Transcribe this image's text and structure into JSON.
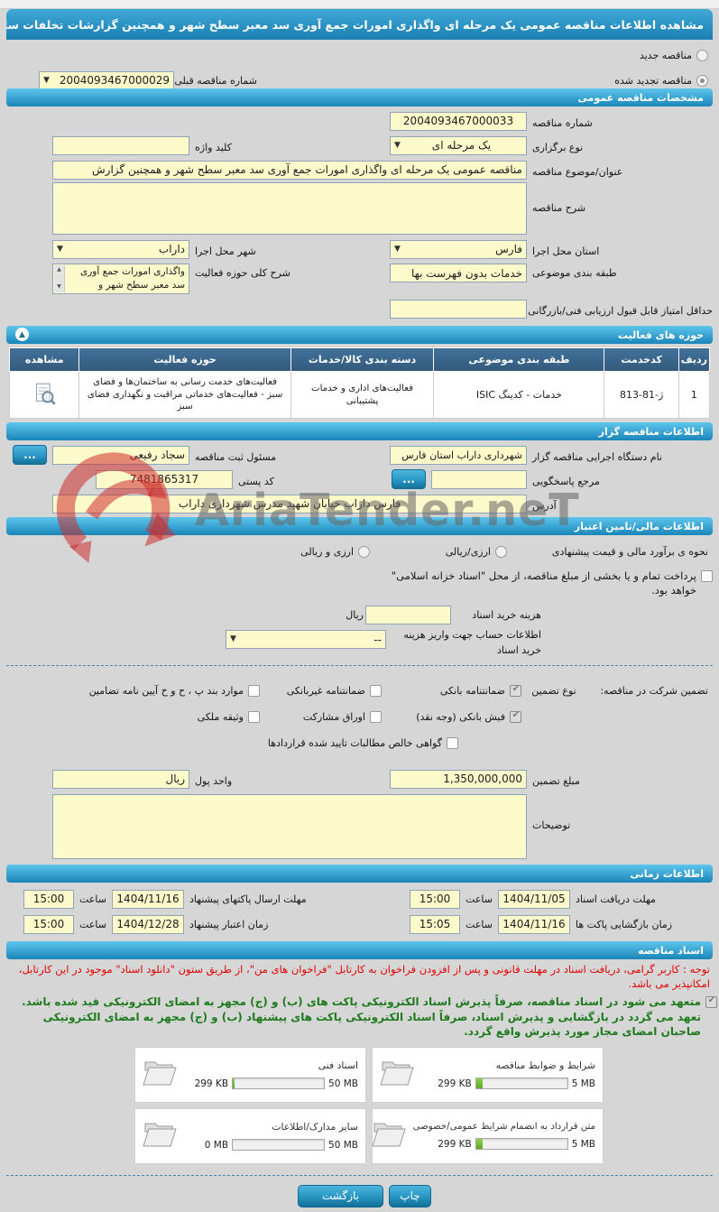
{
  "header": {
    "title": "مشاهده اطلاعات مناقصه عمومی یک مرحله ای واگذاری امورات جمع آوری سد معبر سطح شهر و همچنین گزارشات تخلفات ساختمانی",
    "new_radio": "مناقصه جدید",
    "renewed_radio": "مناقصه تجدید شده",
    "renewed_selected": true,
    "prev_no_label": "شماره مناقصه قبلی",
    "prev_no": "2004093467000029"
  },
  "specs": {
    "bar": "مشخصات مناقصه عمومی",
    "no_label": "شماره مناقصه",
    "no": "2004093467000033",
    "type_label": "نوع برگزاری",
    "type": "یک مرحله ای",
    "keyword_label": "کلید واژه",
    "keyword": "",
    "subject_label": "عنوان/موضوع مناقصه",
    "subject": "مناقصه عمومی یک مرحله ای واگذاری امورات جمع آوری سد معبر سطح شهر و همچنین گزارش",
    "desc_label": "شرح مناقصه",
    "desc": "",
    "province_label": "استان محل اجرا",
    "province": "فارس",
    "city_label": "شهر محل اجرا",
    "city": "داراب",
    "class_label": "طبقه بندی موضوعی",
    "class": "خدمات بدون فهرست بها",
    "scope_label": "شرح کلی حوزه فعالیت",
    "scope": "واگذاری امورات جمع آوری سد معبر سطح شهر و",
    "minscore_label": "حداقل امتیاز قابل قبول ارزیابی فنی/بازرگانی",
    "minscore": ""
  },
  "activity_table": {
    "bar": "حوزه های فعالیت",
    "headers": [
      "ردیف",
      "کدخدمت",
      "طبقه بندی موضوعی",
      "دسته بندی کالا/خدمات",
      "حوزه فعالیت",
      "مشاهده"
    ],
    "rows": [
      {
        "index": "1",
        "code": "ژ-81-813",
        "class": "خدمات - کدینگ ISIC",
        "category": "فعالیت‌های اداری و خدمات پشتیبانی",
        "field": "فعالیت‌های خدمت رسانی به ساختمان‌ها و فضای سبز - فعالیت‌های خدماتی مراقبت و نگهداری فضای سبز"
      }
    ]
  },
  "agency": {
    "bar": "اطلاعات مناقصه گزار",
    "name_label": "نام دستگاه اجرایی مناقصه گزار",
    "name": "شهرداری داراب استان فارس",
    "registrar_label": "مسئول ثبت مناقصه",
    "registrar": "سجاد رفیعی",
    "more_label": "...",
    "ref_label": "مرجع پاسخگویی",
    "ref": "",
    "postal_label": "کد پستی",
    "postal": "7481865317",
    "address_label": "آدرس",
    "address": "فارس داراب خیابان شهید مدرس شهرداری داراب"
  },
  "financial": {
    "bar": "اطلاعات مالی/تامین اعتبار",
    "estimate_label": "نحوه ی برآورد مالی و قیمت پیشنهادی",
    "opt1": "ارزی/ریالی",
    "opt2": "ارزی و ریالی",
    "treasury_note": "پرداخت تمام و یا بخشی از مبلغ مناقصه، از محل \"اسناد خزانه اسلامی\" خواهد بود.",
    "docfee_label": "هزینه خرید اسناد",
    "rial": "ریال",
    "account_label_1": "اطلاعات حساب جهت واریز هزینه",
    "account_label_2": "خرید اسناد",
    "account_value": "--",
    "guarantee_label": "تضمین شرکت در مناقصه:",
    "type_label": "نوع تضمین",
    "guarantees": [
      {
        "label": "ضمانتنامه بانکی",
        "checked": true
      },
      {
        "label": "ضمانتنامه غیربانکی",
        "checked": false
      },
      {
        "label": "موارد بند پ ، ح و خ آیین نامه تضامین",
        "checked": false
      },
      {
        "label": "فیش بانکی (وجه نقد)",
        "checked": true
      },
      {
        "label": "اوراق مشارکت",
        "checked": false
      },
      {
        "label": "وثیقه ملکی",
        "checked": false
      },
      {
        "label": "گواهی خالص مطالبات تایید شده قراردادها",
        "checked": false
      }
    ],
    "treasury_checked": false,
    "amount_label": "مبلغ تضمین",
    "amount": "1,350,000,000",
    "currency_label": "واحد پول",
    "currency": "ریال",
    "notes_label": "توضیحات",
    "notes": ""
  },
  "schedule": {
    "bar": "اطلاعات زمانی",
    "hour": "ساعت",
    "r1a_label": "مهلت دریافت اسناد",
    "r1a_date": "1404/11/05",
    "r1a_time": "15:00",
    "r1b_label": "مهلت ارسال پاکتهای پیشنهاد",
    "r1b_date": "1404/11/16",
    "r1b_time": "15:00",
    "r2a_label": "زمان بازگشایی پاکت ها",
    "r2a_date": "1404/11/16",
    "r2a_time": "15:05",
    "r2b_label": "زمان اعتبار پیشنهاد",
    "r2b_date": "1404/12/28",
    "r2b_time": "15:00"
  },
  "documents": {
    "bar": "اسناد مناقصه",
    "note_red": "توجه : کاربر گرامی، دریافت اسناد در مهلت قانونی و پس از افزودن فراخوان به کارتابل \"فراخوان های من\"، از طریق ستون \"دانلود اسناد\" موجود در این کارتابل، امکانپذیر می باشد.",
    "commitment_checked": true,
    "note_green": "متعهد می شود در اسناد مناقصه، صرفاً پذیرش اسناد الکترونیکی پاکت های (ب) و (ج) مجهز به امضای الکترونیکی قید شده باشد. تعهد می گردد در بازگشایی و پذیرش اسناد، صرفاً اسناد الکترونیکی پاکت های پیشنهاد (ب) و (ج) مجهز به امضای الکترونیکی صاحبان امضای مجاز مورد پذیرش واقع گردد.",
    "files": [
      {
        "title": "شرایط و ضوابط مناقصه",
        "size": "299 KB",
        "max": "5 MB",
        "pct": 7
      },
      {
        "title": "اسناد فنی",
        "size": "299 KB",
        "max": "50 MB",
        "pct": 1.5
      },
      {
        "title": "متن قرارداد به انضمام شرایط عمومی/خصوصی",
        "size": "299 KB",
        "max": "5 MB",
        "pct": 7
      },
      {
        "title": "سایر مدارک/اطلاعات",
        "size": "0 MB",
        "max": "50 MB",
        "pct": 0
      }
    ]
  },
  "footer": {
    "print": "چاپ",
    "back": "بازگشت"
  },
  "watermark": {
    "text": "AriaTender.neT"
  },
  "colors": {
    "accent_blue": "#1b85b9",
    "field_yellow": "#fcf9ca",
    "progress_green": "#6cb531",
    "note_red": "#e00000",
    "note_green": "#1d7a1d",
    "table_header": "#3a678c"
  }
}
